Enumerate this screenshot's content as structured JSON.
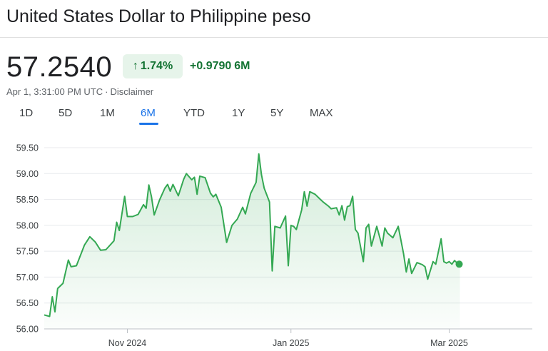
{
  "header": {
    "title": "United States Dollar to Philippine peso"
  },
  "quote": {
    "price": "57.2540",
    "change_percent": "1.74%",
    "change_value": "+0.9790",
    "change_period": "6M",
    "timestamp": "Apr 1, 3:31:00 PM UTC",
    "separator": "·",
    "disclaimer": "Disclaimer",
    "up_arrow_icon": "arrow-up-icon",
    "accent_color": "#137333",
    "accent_bg": "#e6f4ea"
  },
  "tabs": [
    {
      "label": "1D",
      "active": false
    },
    {
      "label": "5D",
      "active": false
    },
    {
      "label": "1M",
      "active": false
    },
    {
      "label": "6M",
      "active": true
    },
    {
      "label": "YTD",
      "active": false
    },
    {
      "label": "1Y",
      "active": false
    },
    {
      "label": "5Y",
      "active": false
    },
    {
      "label": "MAX",
      "active": false
    }
  ],
  "chart_data": {
    "type": "area",
    "line_color": "#34a853",
    "x_tick_labels": [
      "Nov 2024",
      "Jan 2025",
      "Mar 2025"
    ],
    "y_tick_labels": [
      "59.50",
      "59.00",
      "58.50",
      "58.00",
      "57.50",
      "57.00",
      "56.50",
      "56.00"
    ],
    "ylim": [
      56.0,
      59.5
    ],
    "xlim": [
      "2024-10-01",
      "2025-04-01"
    ],
    "grid": true,
    "points": [
      [
        "2024-10-01",
        56.27
      ],
      [
        "2024-10-03",
        56.24
      ],
      [
        "2024-10-04",
        56.62
      ],
      [
        "2024-10-05",
        56.33
      ],
      [
        "2024-10-06",
        56.78
      ],
      [
        "2024-10-08",
        56.88
      ],
      [
        "2024-10-10",
        57.33
      ],
      [
        "2024-10-11",
        57.2
      ],
      [
        "2024-10-13",
        57.22
      ],
      [
        "2024-10-16",
        57.62
      ],
      [
        "2024-10-18",
        57.78
      ],
      [
        "2024-10-20",
        57.68
      ],
      [
        "2024-10-22",
        57.52
      ],
      [
        "2024-10-24",
        57.53
      ],
      [
        "2024-10-27",
        57.7
      ],
      [
        "2024-10-28",
        58.06
      ],
      [
        "2024-10-29",
        57.9
      ],
      [
        "2024-10-31",
        58.56
      ],
      [
        "2024-11-01",
        58.17
      ],
      [
        "2024-11-03",
        58.17
      ],
      [
        "2024-11-05",
        58.21
      ],
      [
        "2024-11-07",
        58.4
      ],
      [
        "2024-11-08",
        58.33
      ],
      [
        "2024-11-09",
        58.78
      ],
      [
        "2024-11-10",
        58.55
      ],
      [
        "2024-11-11",
        58.2
      ],
      [
        "2024-11-13",
        58.49
      ],
      [
        "2024-11-15",
        58.72
      ],
      [
        "2024-11-16",
        58.79
      ],
      [
        "2024-11-17",
        58.66
      ],
      [
        "2024-11-18",
        58.79
      ],
      [
        "2024-11-20",
        58.57
      ],
      [
        "2024-11-22",
        58.89
      ],
      [
        "2024-11-23",
        59.0
      ],
      [
        "2024-11-25",
        58.88
      ],
      [
        "2024-11-26",
        58.93
      ],
      [
        "2024-11-27",
        58.6
      ],
      [
        "2024-11-28",
        58.95
      ],
      [
        "2024-11-30",
        58.92
      ],
      [
        "2024-12-02",
        58.62
      ],
      [
        "2024-12-03",
        58.55
      ],
      [
        "2024-12-04",
        58.6
      ],
      [
        "2024-12-06",
        58.35
      ],
      [
        "2024-12-08",
        57.67
      ],
      [
        "2024-12-10",
        58.0
      ],
      [
        "2024-12-12",
        58.12
      ],
      [
        "2024-12-14",
        58.35
      ],
      [
        "2024-12-15",
        58.22
      ],
      [
        "2024-12-17",
        58.62
      ],
      [
        "2024-12-19",
        58.83
      ],
      [
        "2024-12-20",
        59.38
      ],
      [
        "2024-12-21",
        58.98
      ],
      [
        "2024-12-22",
        58.72
      ],
      [
        "2024-12-24",
        58.45
      ],
      [
        "2024-12-25",
        57.12
      ],
      [
        "2024-12-26",
        57.98
      ],
      [
        "2024-12-28",
        57.95
      ],
      [
        "2024-12-30",
        58.18
      ],
      [
        "2024-12-31",
        57.22
      ],
      [
        "2025-01-01",
        58.0
      ],
      [
        "2025-01-02",
        57.98
      ],
      [
        "2025-01-03",
        57.92
      ],
      [
        "2025-01-05",
        58.3
      ],
      [
        "2025-01-06",
        58.65
      ],
      [
        "2025-01-07",
        58.37
      ],
      [
        "2025-01-08",
        58.65
      ],
      [
        "2025-01-10",
        58.6
      ],
      [
        "2025-01-12",
        58.5
      ],
      [
        "2025-01-13",
        58.45
      ],
      [
        "2025-01-15",
        58.37
      ],
      [
        "2025-01-16",
        58.32
      ],
      [
        "2025-01-18",
        58.34
      ],
      [
        "2025-01-19",
        58.2
      ],
      [
        "2025-01-20",
        58.38
      ],
      [
        "2025-01-21",
        58.1
      ],
      [
        "2025-01-22",
        58.36
      ],
      [
        "2025-01-23",
        58.38
      ],
      [
        "2025-01-24",
        58.56
      ],
      [
        "2025-01-25",
        57.92
      ],
      [
        "2025-01-26",
        57.85
      ],
      [
        "2025-01-28",
        57.3
      ],
      [
        "2025-01-29",
        57.95
      ],
      [
        "2025-01-30",
        58.02
      ],
      [
        "2025-01-31",
        57.6
      ],
      [
        "2025-02-02",
        57.98
      ],
      [
        "2025-02-04",
        57.6
      ],
      [
        "2025-02-05",
        57.95
      ],
      [
        "2025-02-06",
        57.85
      ],
      [
        "2025-02-08",
        57.76
      ],
      [
        "2025-02-10",
        57.98
      ],
      [
        "2025-02-11",
        57.72
      ],
      [
        "2025-02-12",
        57.45
      ],
      [
        "2025-02-13",
        57.1
      ],
      [
        "2025-02-14",
        57.35
      ],
      [
        "2025-02-15",
        57.07
      ],
      [
        "2025-02-17",
        57.28
      ],
      [
        "2025-02-19",
        57.24
      ],
      [
        "2025-02-20",
        57.2
      ],
      [
        "2025-02-21",
        56.96
      ],
      [
        "2025-02-23",
        57.3
      ],
      [
        "2025-02-24",
        57.25
      ],
      [
        "2025-02-26",
        57.74
      ],
      [
        "2025-02-27",
        57.3
      ],
      [
        "2025-02-28",
        57.27
      ],
      [
        "2025-03-01",
        57.3
      ],
      [
        "2025-03-02",
        57.25
      ],
      [
        "2025-03-03",
        57.32
      ],
      [
        "2025-03-04",
        57.27
      ],
      [
        "2025-03-05",
        57.25
      ]
    ]
  }
}
